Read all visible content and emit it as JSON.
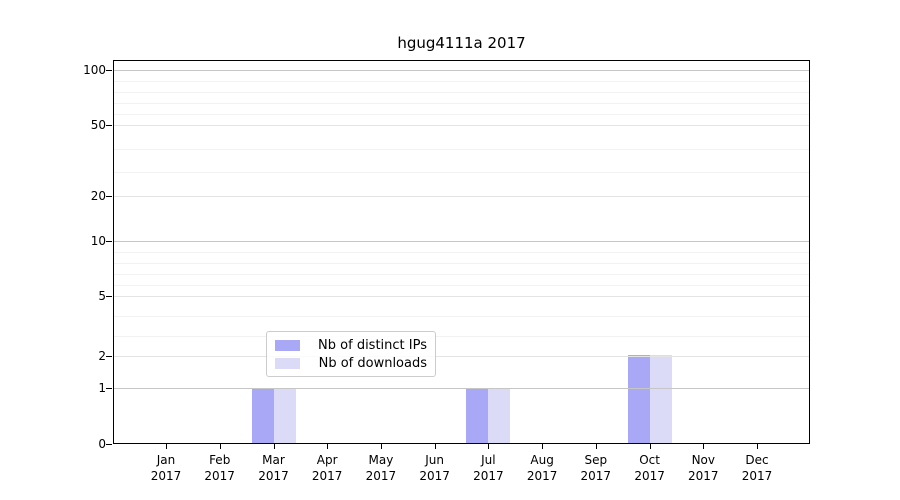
{
  "chart_data": {
    "type": "bar",
    "title": "hgug4111a 2017",
    "categories": [
      "Jan 2017",
      "Feb 2017",
      "Mar 2017",
      "Apr 2017",
      "May 2017",
      "Jun 2017",
      "Jul 2017",
      "Aug 2017",
      "Sep 2017",
      "Oct 2017",
      "Nov 2017",
      "Dec 2017"
    ],
    "series": [
      {
        "name": "Nb of distinct IPs",
        "color": "#a8a8f6",
        "values": [
          0,
          0,
          1,
          0,
          0,
          0,
          1,
          0,
          0,
          2,
          0,
          0
        ]
      },
      {
        "name": "Nb of downloads",
        "color": "#dbdbf8",
        "values": [
          0,
          0,
          1,
          0,
          0,
          0,
          1,
          0,
          0,
          2,
          0,
          0
        ]
      }
    ],
    "y_axis": {
      "ticks": [
        0,
        1,
        2,
        5,
        10,
        20,
        50,
        100
      ],
      "minor_gridlines": [
        3,
        4,
        6,
        7,
        8,
        9,
        30,
        40,
        60,
        70,
        80,
        90
      ],
      "scale": "log-like",
      "range": [
        0,
        110
      ]
    },
    "x_axis": {
      "label_year_split": true
    },
    "legend": {
      "position": "lower-center-inside",
      "entries": [
        "Nb of distinct IPs",
        "Nb of downloads"
      ]
    },
    "grid": true,
    "colors": {
      "decade_gridline": "#c6c6c6",
      "major_gridline": "#e4e4e4",
      "minor_gridline": "#f2f2f2",
      "spine": "#000000",
      "background": "#ffffff"
    }
  }
}
